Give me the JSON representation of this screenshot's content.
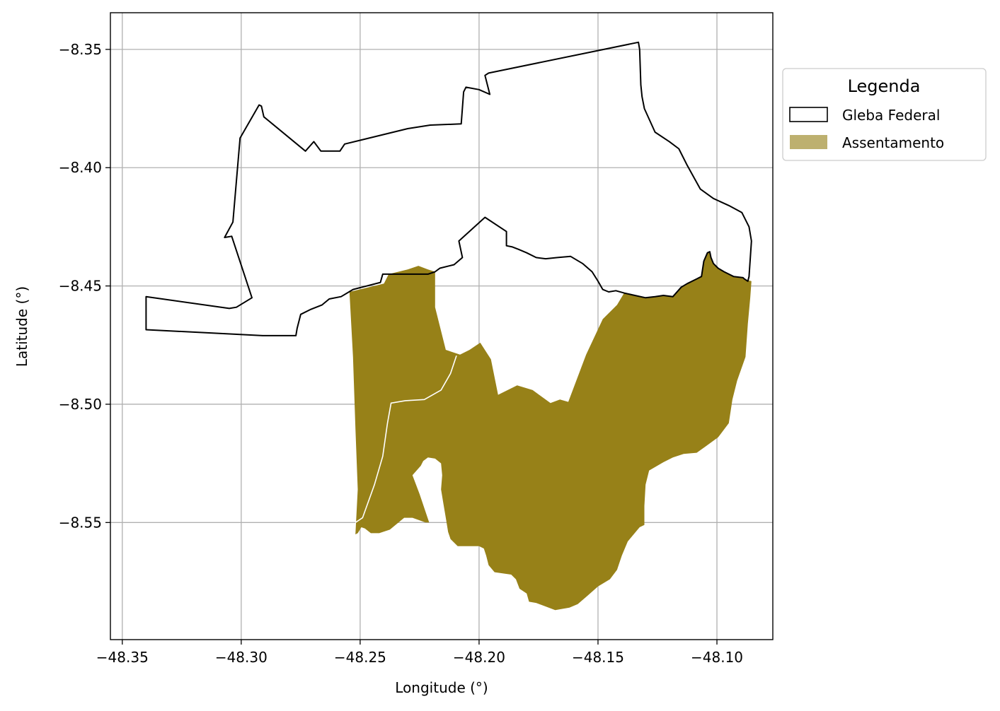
{
  "chart_data": {
    "type": "map",
    "xlabel": "Longitude (°)",
    "ylabel": "Latitude (°)",
    "xlim": [
      -48.355,
      -48.0765
    ],
    "ylim": [
      -8.5995,
      -8.3345
    ],
    "x_ticks": [
      -48.35,
      -48.3,
      -48.25,
      -48.2,
      -48.15,
      -48.1
    ],
    "y_ticks": [
      -8.35,
      -8.4,
      -8.45,
      -8.5,
      -8.55
    ],
    "x_tick_labels": [
      "−48.35",
      "−48.30",
      "−48.25",
      "−48.20",
      "−48.15",
      "−48.10"
    ],
    "y_tick_labels": [
      "−8.35",
      "−8.40",
      "−8.45",
      "−8.50",
      "−8.55"
    ],
    "grid": true,
    "legend": {
      "title": "Legenda",
      "placement": "outside-right-top",
      "entries": [
        {
          "label": "Gleba Federal",
          "style": "outline",
          "color": "#000000"
        },
        {
          "label": "Assentamento",
          "style": "fill",
          "color": "#bdb06f"
        }
      ]
    },
    "layers": [
      {
        "name": "Gleba Federal",
        "type": "polygon-outline",
        "stroke": "#000000",
        "coordinates": [
          [
            -48.34,
            -8.4545
          ],
          [
            -48.305,
            -8.4595
          ],
          [
            -48.302,
            -8.459
          ],
          [
            -48.2955,
            -8.455
          ],
          [
            -48.304,
            -8.429
          ],
          [
            -48.307,
            -8.4295
          ],
          [
            -48.3035,
            -8.423
          ],
          [
            -48.3005,
            -8.3875
          ],
          [
            -48.2925,
            -8.3735
          ],
          [
            -48.2915,
            -8.374
          ],
          [
            -48.2905,
            -8.3785
          ],
          [
            -48.273,
            -8.393
          ],
          [
            -48.2695,
            -8.389
          ],
          [
            -48.2665,
            -8.393
          ],
          [
            -48.2585,
            -8.393
          ],
          [
            -48.2565,
            -8.39
          ],
          [
            -48.23,
            -8.3835
          ],
          [
            -48.2205,
            -8.382
          ],
          [
            -48.2075,
            -8.3815
          ],
          [
            -48.2065,
            -8.368
          ],
          [
            -48.2055,
            -8.366
          ],
          [
            -48.2,
            -8.367
          ],
          [
            -48.1955,
            -8.369
          ],
          [
            -48.1975,
            -8.361
          ],
          [
            -48.196,
            -8.36
          ],
          [
            -48.133,
            -8.347
          ],
          [
            -48.1325,
            -8.35
          ],
          [
            -48.132,
            -8.365
          ],
          [
            -48.1315,
            -8.37
          ],
          [
            -48.1305,
            -8.375
          ],
          [
            -48.126,
            -8.385
          ],
          [
            -48.12,
            -8.389
          ],
          [
            -48.116,
            -8.392
          ],
          [
            -48.1125,
            -8.399
          ],
          [
            -48.107,
            -8.409
          ],
          [
            -48.1015,
            -8.413
          ],
          [
            -48.095,
            -8.416
          ],
          [
            -48.0895,
            -8.419
          ],
          [
            -48.0865,
            -8.425
          ],
          [
            -48.0855,
            -8.431
          ],
          [
            -48.0865,
            -8.446
          ],
          [
            -48.087,
            -8.448
          ],
          [
            -48.0885,
            -8.447
          ],
          [
            -48.089,
            -8.4465
          ],
          [
            -48.093,
            -8.446
          ],
          [
            -48.097,
            -8.444
          ],
          [
            -48.0995,
            -8.4425
          ],
          [
            -48.1015,
            -8.4405
          ],
          [
            -48.1025,
            -8.438
          ],
          [
            -48.103,
            -8.4355
          ],
          [
            -48.104,
            -8.436
          ],
          [
            -48.1055,
            -8.4395
          ],
          [
            -48.1065,
            -8.446
          ],
          [
            -48.1085,
            -8.447
          ],
          [
            -48.1125,
            -8.449
          ],
          [
            -48.115,
            -8.4505
          ],
          [
            -48.1185,
            -8.4545
          ],
          [
            -48.1225,
            -8.454
          ],
          [
            -48.126,
            -8.4545
          ],
          [
            -48.13,
            -8.455
          ],
          [
            -48.1345,
            -8.454
          ],
          [
            -48.139,
            -8.453
          ],
          [
            -48.1425,
            -8.452
          ],
          [
            -48.1455,
            -8.4525
          ],
          [
            -48.148,
            -8.4515
          ],
          [
            -48.15,
            -8.448
          ],
          [
            -48.1525,
            -8.444
          ],
          [
            -48.1565,
            -8.4405
          ],
          [
            -48.1615,
            -8.4375
          ],
          [
            -48.167,
            -8.438
          ],
          [
            -48.172,
            -8.4385
          ],
          [
            -48.176,
            -8.438
          ],
          [
            -48.18,
            -8.436
          ],
          [
            -48.1835,
            -8.4345
          ],
          [
            -48.186,
            -8.4335
          ],
          [
            -48.1885,
            -8.433
          ],
          [
            -48.1885,
            -8.427
          ],
          [
            -48.1975,
            -8.421
          ],
          [
            -48.2085,
            -8.431
          ],
          [
            -48.207,
            -8.438
          ],
          [
            -48.2105,
            -8.441
          ],
          [
            -48.2165,
            -8.4425
          ],
          [
            -48.2185,
            -8.444
          ],
          [
            -48.2215,
            -8.445
          ],
          [
            -48.2405,
            -8.445
          ],
          [
            -48.2415,
            -8.4485
          ],
          [
            -48.253,
            -8.4515
          ],
          [
            -48.258,
            -8.4545
          ],
          [
            -48.263,
            -8.4555
          ],
          [
            -48.266,
            -8.458
          ],
          [
            -48.271,
            -8.46
          ],
          [
            -48.275,
            -8.462
          ],
          [
            -48.2765,
            -8.468
          ],
          [
            -48.277,
            -8.471
          ],
          [
            -48.291,
            -8.471
          ],
          [
            -48.34,
            -8.4685
          ],
          [
            -48.34,
            -8.4545
          ]
        ]
      },
      {
        "name": "Assentamento",
        "type": "polygon-fill",
        "fill": "#978118",
        "polygons": [
          [
            [
              -48.2545,
              -8.4525
            ],
            [
              -48.24,
              -8.449
            ],
            [
              -48.238,
              -8.445
            ],
            [
              -48.23,
              -8.443
            ],
            [
              -48.2255,
              -8.4415
            ],
            [
              -48.2215,
              -8.443
            ],
            [
              -48.2185,
              -8.444
            ],
            [
              -48.2185,
              -8.459
            ],
            [
              -48.214,
              -8.477
            ],
            [
              -48.208,
              -8.479
            ],
            [
              -48.204,
              -8.477
            ],
            [
              -48.1995,
              -8.474
            ],
            [
              -48.195,
              -8.481
            ],
            [
              -48.192,
              -8.496
            ],
            [
              -48.184,
              -8.492
            ],
            [
              -48.1775,
              -8.494
            ],
            [
              -48.17,
              -8.4995
            ],
            [
              -48.166,
              -8.498
            ],
            [
              -48.1625,
              -8.499
            ],
            [
              -48.155,
              -8.479
            ],
            [
              -48.148,
              -8.464
            ],
            [
              -48.142,
              -8.458
            ],
            [
              -48.139,
              -8.453
            ],
            [
              -48.1345,
              -8.454
            ],
            [
              -48.13,
              -8.455
            ],
            [
              -48.126,
              -8.4545
            ],
            [
              -48.1225,
              -8.454
            ],
            [
              -48.1185,
              -8.4545
            ],
            [
              -48.115,
              -8.4505
            ],
            [
              -48.1125,
              -8.449
            ],
            [
              -48.1085,
              -8.447
            ],
            [
              -48.1065,
              -8.446
            ],
            [
              -48.1055,
              -8.4395
            ],
            [
              -48.104,
              -8.436
            ],
            [
              -48.103,
              -8.4355
            ],
            [
              -48.1025,
              -8.438
            ],
            [
              -48.1015,
              -8.4405
            ],
            [
              -48.0995,
              -8.4425
            ],
            [
              -48.097,
              -8.444
            ],
            [
              -48.093,
              -8.446
            ],
            [
              -48.089,
              -8.4465
            ],
            [
              -48.0885,
              -8.447
            ],
            [
              -48.0855,
              -8.448
            ],
            [
              -48.086,
              -8.455
            ],
            [
              -48.087,
              -8.466
            ],
            [
              -48.088,
              -8.48
            ],
            [
              -48.0915,
              -8.49
            ],
            [
              -48.0935,
              -8.498
            ],
            [
              -48.095,
              -8.508
            ],
            [
              -48.0995,
              -8.514
            ],
            [
              -48.105,
              -8.518
            ],
            [
              -48.1085,
              -8.5205
            ],
            [
              -48.114,
              -8.521
            ],
            [
              -48.1185,
              -8.5225
            ],
            [
              -48.1225,
              -8.5245
            ],
            [
              -48.1285,
              -8.528
            ],
            [
              -48.13,
              -8.534
            ],
            [
              -48.1305,
              -8.543
            ],
            [
              -48.1305,
              -8.551
            ],
            [
              -48.1325,
              -8.552
            ],
            [
              -48.1375,
              -8.558
            ],
            [
              -48.14,
              -8.564
            ],
            [
              -48.142,
              -8.57
            ],
            [
              -48.145,
              -8.574
            ],
            [
              -48.15,
              -8.577
            ],
            [
              -48.1545,
              -8.581
            ],
            [
              -48.1585,
              -8.5845
            ],
            [
              -48.162,
              -8.586
            ],
            [
              -48.168,
              -8.587
            ],
            [
              -48.172,
              -8.5855
            ],
            [
              -48.176,
              -8.584
            ],
            [
              -48.179,
              -8.5835
            ],
            [
              -48.18,
              -8.58
            ],
            [
              -48.183,
              -8.578
            ],
            [
              -48.1845,
              -8.574
            ],
            [
              -48.1865,
              -8.572
            ],
            [
              -48.1935,
              -8.571
            ],
            [
              -48.196,
              -8.568
            ],
            [
              -48.197,
              -8.564
            ],
            [
              -48.198,
              -8.561
            ],
            [
              -48.2,
              -8.56
            ],
            [
              -48.203,
              -8.56
            ],
            [
              -48.209,
              -8.56
            ],
            [
              -48.212,
              -8.557
            ],
            [
              -48.213,
              -8.554
            ],
            [
              -48.214,
              -8.548
            ],
            [
              -48.215,
              -8.542
            ],
            [
              -48.216,
              -8.536
            ],
            [
              -48.2155,
              -8.53
            ],
            [
              -48.216,
              -8.525
            ],
            [
              -48.2185,
              -8.523
            ],
            [
              -48.2215,
              -8.5225
            ],
            [
              -48.2235,
              -8.524
            ],
            [
              -48.2245,
              -8.526
            ],
            [
              -48.228,
              -8.53
            ],
            [
              -48.225,
              -8.538
            ],
            [
              -48.221,
              -8.55
            ],
            [
              -48.2225,
              -8.55
            ],
            [
              -48.228,
              -8.548
            ],
            [
              -48.2315,
              -8.548
            ],
            [
              -48.2345,
              -8.5505
            ],
            [
              -48.2375,
              -8.553
            ],
            [
              -48.242,
              -8.5545
            ],
            [
              -48.2455,
              -8.5545
            ],
            [
              -48.248,
              -8.5525
            ],
            [
              -48.2495,
              -8.552
            ],
            [
              -48.251,
              -8.5545
            ],
            [
              -48.252,
              -8.555
            ],
            [
              -48.251,
              -8.536
            ],
            [
              -48.252,
              -8.51
            ],
            [
              -48.253,
              -8.48
            ],
            [
              -48.2545,
              -8.4525
            ]
          ]
        ],
        "boundary_line": {
          "stroke": "#ffffff",
          "coordinates": [
            [
              -48.2095,
              -8.4795
            ],
            [
              -48.212,
              -8.487
            ],
            [
              -48.216,
              -8.494
            ],
            [
              -48.223,
              -8.498
            ],
            [
              -48.231,
              -8.4985
            ],
            [
              -48.237,
              -8.4995
            ],
            [
              -48.2385,
              -8.508
            ],
            [
              -48.2405,
              -8.522
            ],
            [
              -48.244,
              -8.534
            ],
            [
              -48.249,
              -8.548
            ],
            [
              -48.252,
              -8.55
            ]
          ]
        }
      }
    ]
  }
}
